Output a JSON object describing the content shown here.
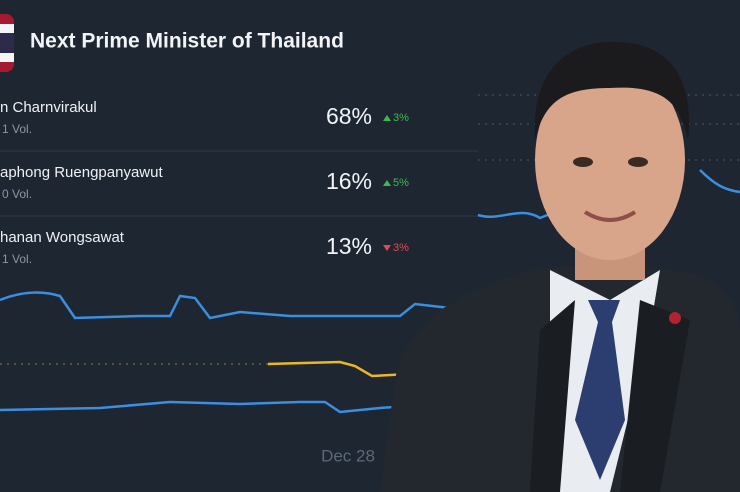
{
  "header": {
    "title": "Next Prime Minister of Thailand"
  },
  "outcomes": [
    {
      "name": "n Charnvirakul",
      "volume": "1 Vol.",
      "chance": "68%",
      "change": "3%",
      "direction": "up"
    },
    {
      "name": "aphong Ruengpanyawut",
      "volume": "0 Vol.",
      "chance": "16%",
      "change": "5%",
      "direction": "up"
    },
    {
      "name": "hanan Wongsawat",
      "volume": "1 Vol.",
      "chance": "13%",
      "change": "3%",
      "direction": "down"
    }
  ],
  "chart": {
    "x_label": "Dec 28"
  }
}
